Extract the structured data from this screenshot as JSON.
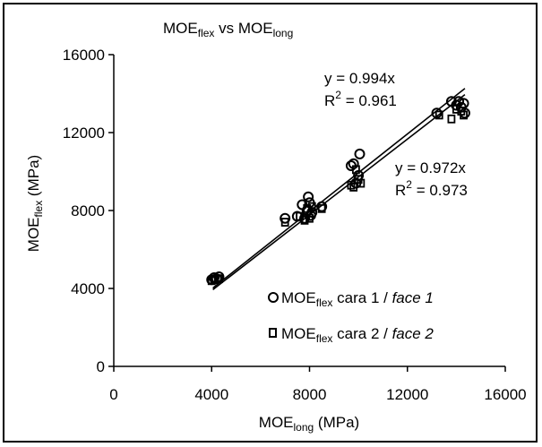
{
  "chart_data": {
    "type": "scatter",
    "title": {
      "base": "MOE",
      "sub1": "flex",
      "mid": " vs MOE",
      "sub2": "long"
    },
    "xlabel": {
      "base": "MOE",
      "sub": "long",
      "tail": " (MPa)"
    },
    "ylabel": {
      "base": "MOE",
      "sub": "flex",
      "tail": " (MPa)"
    },
    "xlim": [
      0,
      16000
    ],
    "ylim": [
      0,
      16000
    ],
    "xticks": [
      "0",
      "4000",
      "8000",
      "12000",
      "16000"
    ],
    "yticks": [
      "0",
      "4000",
      "8000",
      "12000",
      "16000"
    ],
    "grid": false,
    "legend_placement": "bottom-right",
    "series": [
      {
        "name": {
          "base": "MOE",
          "sub": "flex",
          "tail": " cara 1 / ",
          "italic": "face 1"
        },
        "marker": "circle",
        "slope": 0.994,
        "equation": "y = 0.994x",
        "r2": {
          "base": "R",
          "sup": "2",
          "tail": " = 0.961"
        },
        "points": [
          [
            4000,
            4450
          ],
          [
            4100,
            4550
          ],
          [
            4200,
            4500
          ],
          [
            4300,
            4600
          ],
          [
            7000,
            7600
          ],
          [
            7500,
            7700
          ],
          [
            7700,
            8300
          ],
          [
            7800,
            7600
          ],
          [
            7900,
            8000
          ],
          [
            7950,
            8700
          ],
          [
            8000,
            8400
          ],
          [
            8050,
            7750
          ],
          [
            8100,
            7900
          ],
          [
            8500,
            8200
          ],
          [
            9700,
            10300
          ],
          [
            9800,
            10400
          ],
          [
            9900,
            9400
          ],
          [
            10000,
            9800
          ],
          [
            10050,
            10900
          ],
          [
            13200,
            13000
          ],
          [
            13800,
            13600
          ],
          [
            14000,
            13400
          ],
          [
            14100,
            13600
          ],
          [
            14200,
            13300
          ],
          [
            14300,
            13500
          ],
          [
            14350,
            13000
          ]
        ]
      },
      {
        "name": {
          "base": "MOE",
          "sub": "flex",
          "tail": " cara 2 / ",
          "italic": "face 2"
        },
        "marker": "square",
        "slope": 0.972,
        "equation": "y = 0.972x",
        "r2": {
          "base": "R",
          "sup": "2",
          "tail": " = 0.973"
        },
        "points": [
          [
            4000,
            4400
          ],
          [
            4100,
            4450
          ],
          [
            4300,
            4500
          ],
          [
            7000,
            7400
          ],
          [
            7600,
            7700
          ],
          [
            7800,
            7500
          ],
          [
            7900,
            8100
          ],
          [
            8000,
            7600
          ],
          [
            8100,
            8200
          ],
          [
            8500,
            8100
          ],
          [
            9700,
            9300
          ],
          [
            9800,
            9200
          ],
          [
            9900,
            10100
          ],
          [
            10000,
            9600
          ],
          [
            10100,
            9400
          ],
          [
            13300,
            12900
          ],
          [
            13800,
            12700
          ],
          [
            14000,
            13200
          ],
          [
            14200,
            13100
          ],
          [
            14300,
            12900
          ]
        ]
      }
    ]
  }
}
